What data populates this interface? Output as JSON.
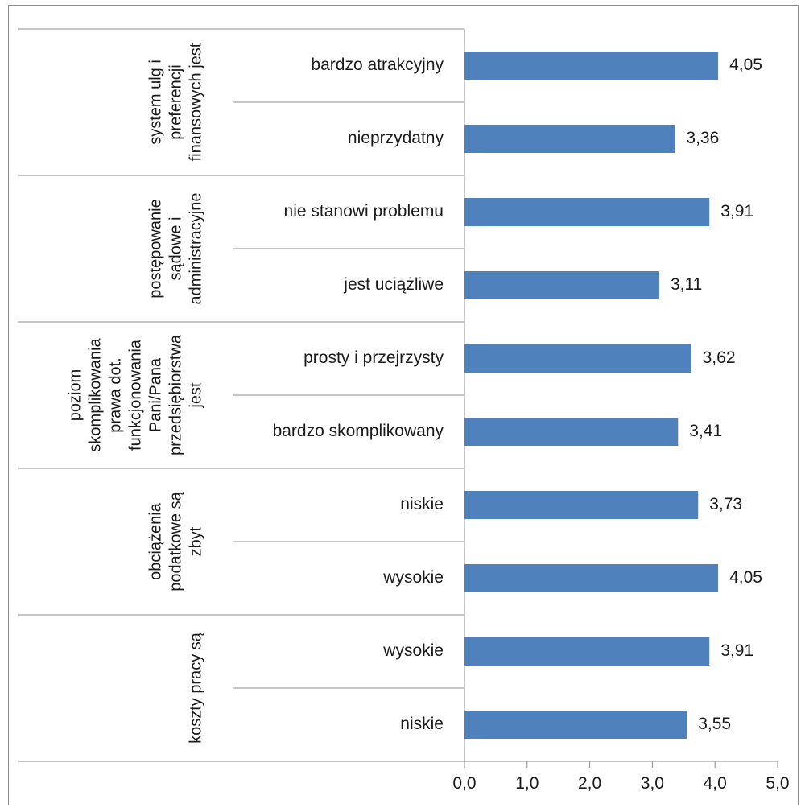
{
  "chart_data": {
    "type": "bar",
    "orientation": "horizontal",
    "bar_color": "#4F81BD",
    "xlim": [
      0,
      5
    ],
    "xticks": [
      "0,0",
      "1,0",
      "2,0",
      "3,0",
      "4,0",
      "5,0"
    ],
    "grid": false,
    "categories": [
      "bardzo atrakcyjny",
      "nieprzydatny",
      "nie stanowi problemu",
      "jest uciążliwe",
      "prosty i przejrzysty",
      "bardzo skomplikowany",
      "niskie",
      "wysokie",
      "wysokie",
      "niskie"
    ],
    "values": [
      4.05,
      3.36,
      3.91,
      3.11,
      3.62,
      3.41,
      3.73,
      4.05,
      3.91,
      3.55
    ],
    "value_labels": [
      "4,05",
      "3,36",
      "3,91",
      "3,11",
      "3,62",
      "3,41",
      "3,73",
      "4,05",
      "3,91",
      "3,55"
    ],
    "groups": [
      {
        "lines": [
          "system ulg i",
          "preferencji",
          "finansowych jest"
        ],
        "count": 2
      },
      {
        "lines": [
          "postępowanie",
          "sądowe i",
          "administracyjne"
        ],
        "count": 2
      },
      {
        "lines": [
          "poziom",
          "skomplikowania",
          "prawa dot.",
          "funkcjonowania",
          "Pani/Pana",
          "przedsiębiorstwa",
          "jest"
        ],
        "count": 2
      },
      {
        "lines": [
          "obciążenia",
          "podatkowe są",
          "zbyt"
        ],
        "count": 2
      },
      {
        "lines": [
          "koszty pracy są"
        ],
        "count": 2
      }
    ]
  }
}
